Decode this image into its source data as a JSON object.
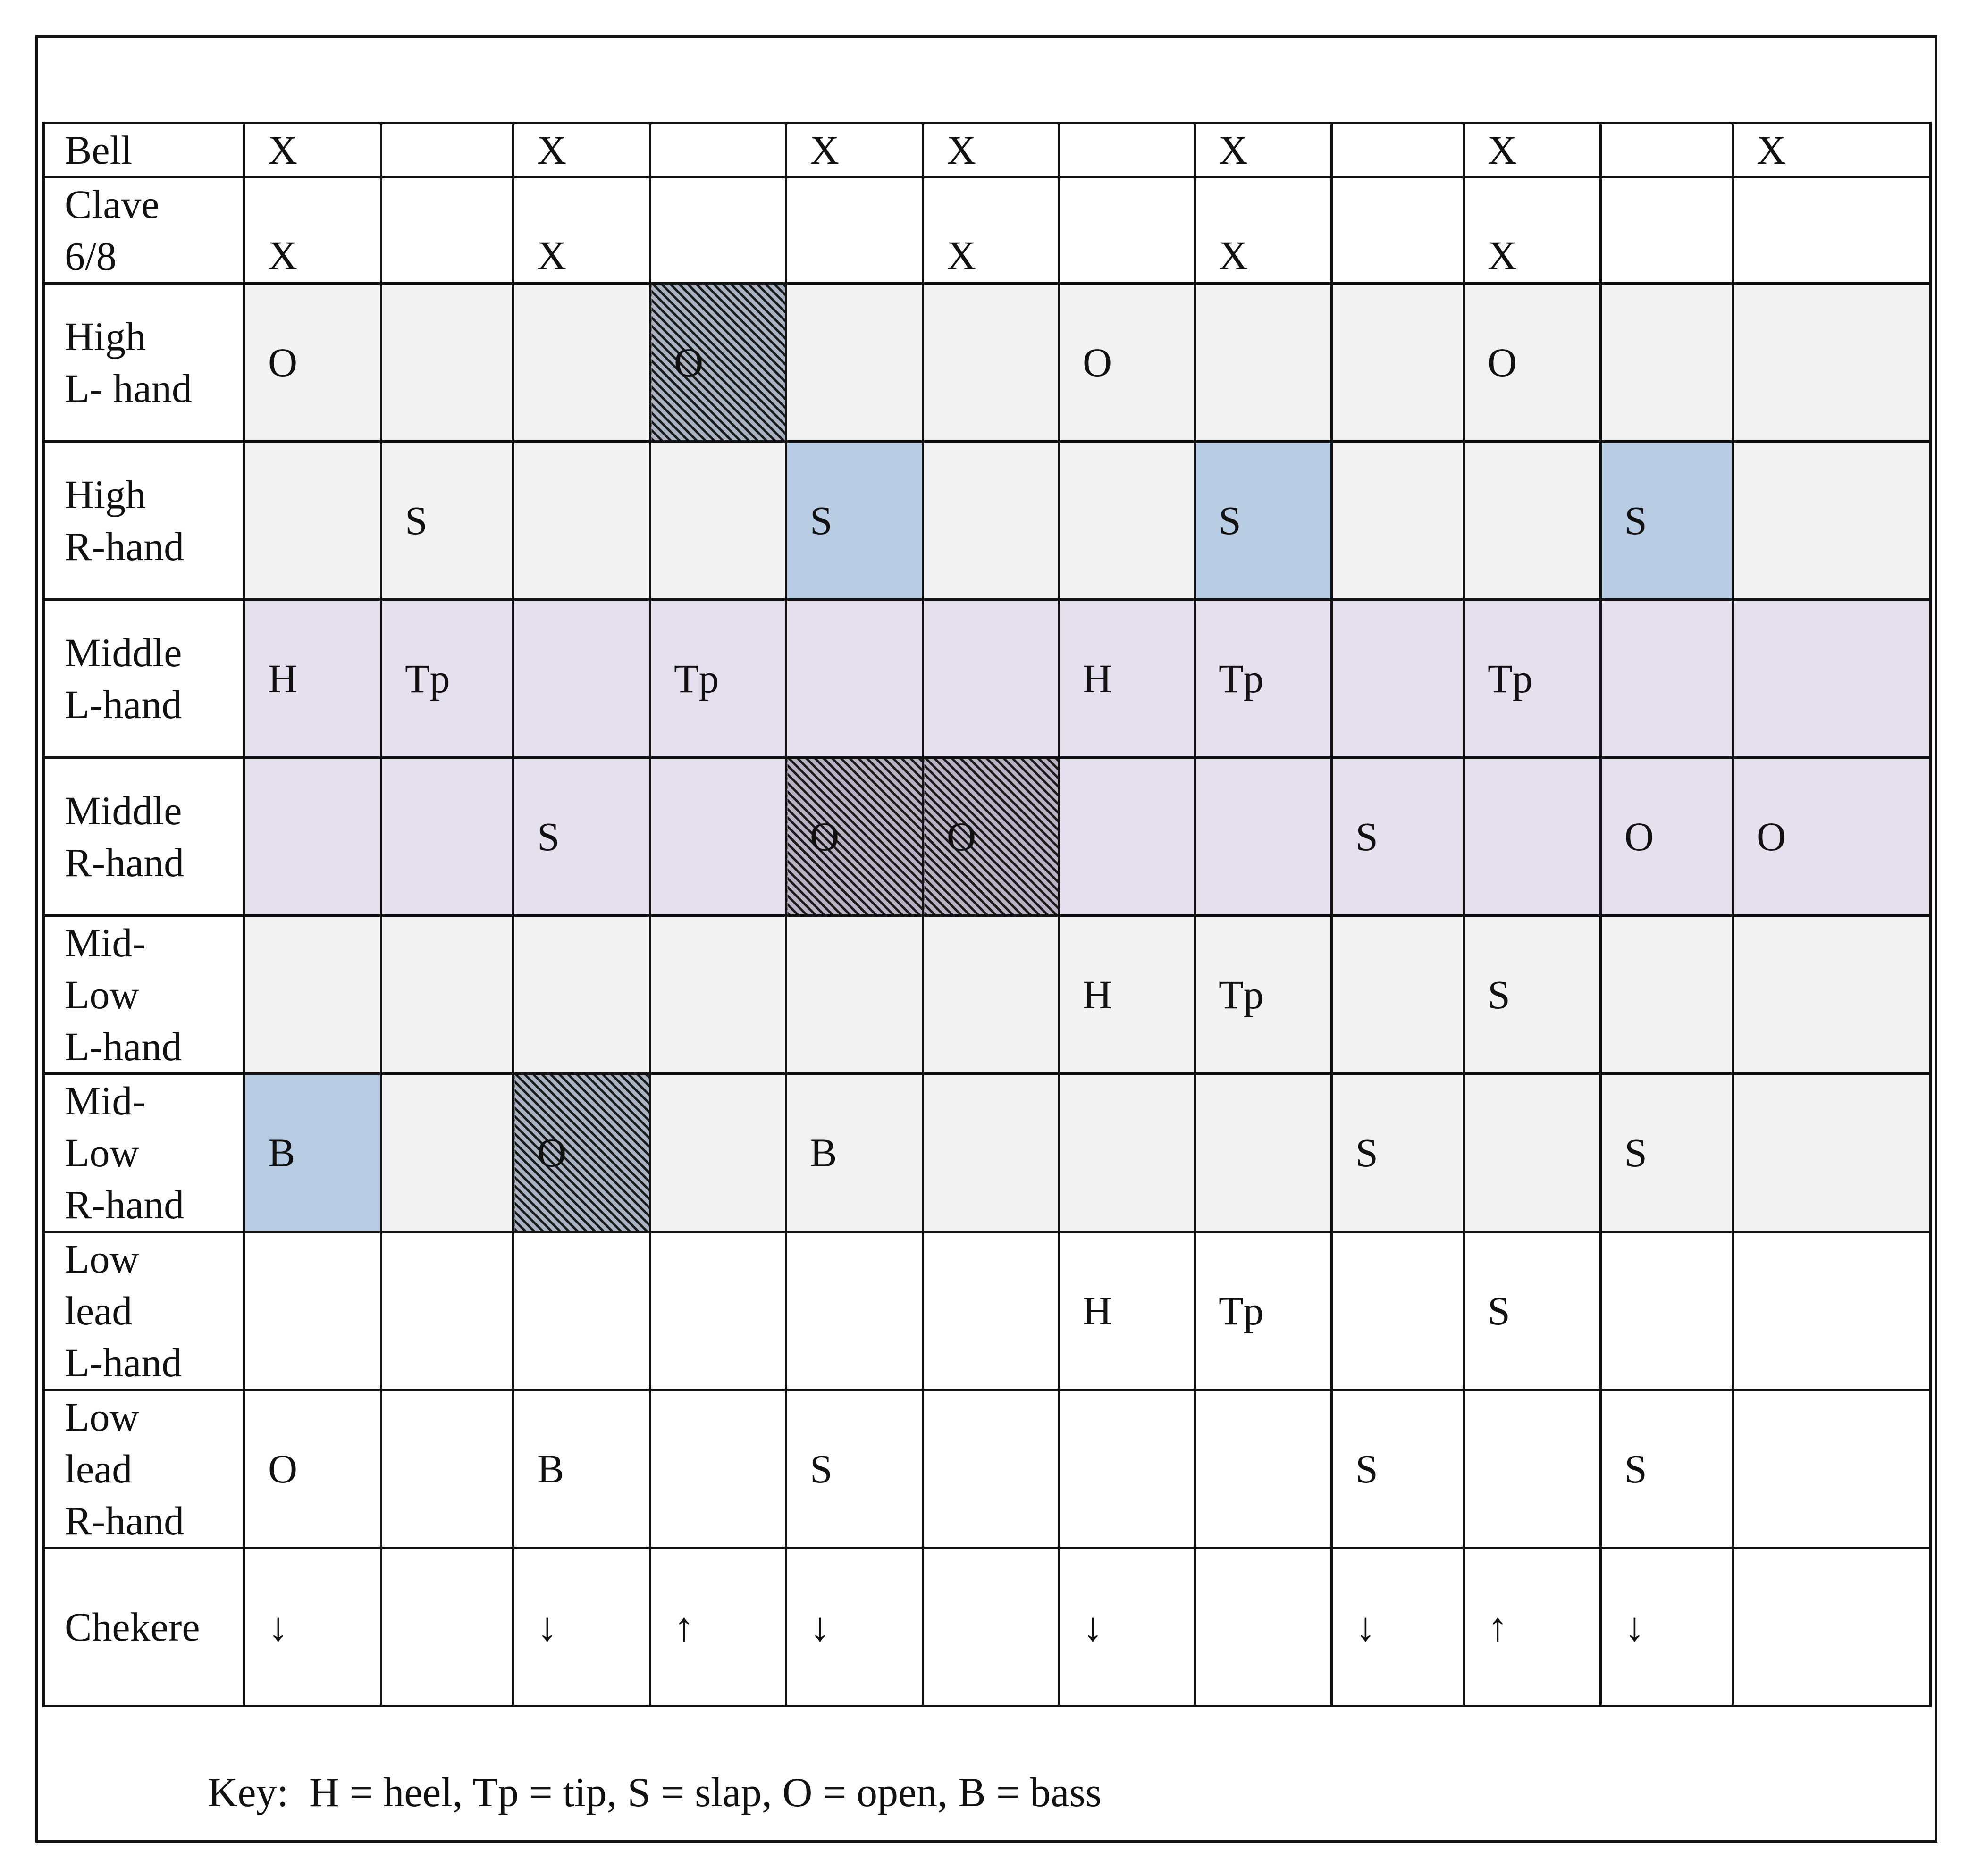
{
  "rows": [
    {
      "label": "Bell",
      "bg": "bg-white",
      "top": false,
      "cells": [
        {
          "t": "X"
        },
        {
          "t": ""
        },
        {
          "t": "X"
        },
        {
          "t": ""
        },
        {
          "t": "X"
        },
        {
          "t": "X"
        },
        {
          "t": ""
        },
        {
          "t": "X"
        },
        {
          "t": ""
        },
        {
          "t": "X"
        },
        {
          "t": ""
        },
        {
          "t": "X"
        }
      ]
    },
    {
      "label": "Clave\n6/8",
      "bg": "bg-white",
      "top": true,
      "cells": [
        {
          "t": "X"
        },
        {
          "t": ""
        },
        {
          "t": "X"
        },
        {
          "t": ""
        },
        {
          "t": ""
        },
        {
          "t": "X"
        },
        {
          "t": ""
        },
        {
          "t": "X"
        },
        {
          "t": ""
        },
        {
          "t": "X"
        },
        {
          "t": ""
        },
        {
          "t": ""
        }
      ]
    },
    {
      "label": "High\nL- hand",
      "bg": "bg-gray",
      "top": false,
      "cells": [
        {
          "t": "O"
        },
        {
          "t": ""
        },
        {
          "t": ""
        },
        {
          "t": "O",
          "s": "hatch"
        },
        {
          "t": ""
        },
        {
          "t": ""
        },
        {
          "t": "O"
        },
        {
          "t": ""
        },
        {
          "t": ""
        },
        {
          "t": "O"
        },
        {
          "t": ""
        },
        {
          "t": ""
        }
      ]
    },
    {
      "label": "High\nR-hand",
      "bg": "bg-gray",
      "top": false,
      "cells": [
        {
          "t": ""
        },
        {
          "t": "S"
        },
        {
          "t": ""
        },
        {
          "t": ""
        },
        {
          "t": "S",
          "s": "bg-blue"
        },
        {
          "t": ""
        },
        {
          "t": ""
        },
        {
          "t": "S",
          "s": "bg-blue"
        },
        {
          "t": ""
        },
        {
          "t": ""
        },
        {
          "t": "S",
          "s": "bg-blue"
        },
        {
          "t": ""
        }
      ]
    },
    {
      "label": "Middle\nL-hand",
      "bg": "bg-lav",
      "top": false,
      "cells": [
        {
          "t": "H"
        },
        {
          "t": "Tp"
        },
        {
          "t": ""
        },
        {
          "t": "Tp"
        },
        {
          "t": ""
        },
        {
          "t": ""
        },
        {
          "t": "H"
        },
        {
          "t": "Tp"
        },
        {
          "t": ""
        },
        {
          "t": "Tp"
        },
        {
          "t": ""
        },
        {
          "t": ""
        }
      ]
    },
    {
      "label": "Middle\nR-hand",
      "bg": "bg-lav",
      "top": false,
      "cells": [
        {
          "t": ""
        },
        {
          "t": ""
        },
        {
          "t": "S"
        },
        {
          "t": ""
        },
        {
          "t": "O",
          "s": "hatch2"
        },
        {
          "t": "O",
          "s": "hatch2"
        },
        {
          "t": ""
        },
        {
          "t": ""
        },
        {
          "t": "S"
        },
        {
          "t": ""
        },
        {
          "t": "O"
        },
        {
          "t": "O"
        }
      ]
    },
    {
      "label": "Mid-\nLow\nL-hand",
      "bg": "bg-gray",
      "top": false,
      "cells": [
        {
          "t": ""
        },
        {
          "t": ""
        },
        {
          "t": ""
        },
        {
          "t": ""
        },
        {
          "t": ""
        },
        {
          "t": ""
        },
        {
          "t": "H"
        },
        {
          "t": "Tp"
        },
        {
          "t": ""
        },
        {
          "t": "S"
        },
        {
          "t": ""
        },
        {
          "t": ""
        }
      ]
    },
    {
      "label": "Mid-\nLow\nR-hand",
      "bg": "bg-gray",
      "top": false,
      "cells": [
        {
          "t": "B",
          "s": "bg-blue"
        },
        {
          "t": ""
        },
        {
          "t": "O",
          "s": "hatch"
        },
        {
          "t": ""
        },
        {
          "t": "B"
        },
        {
          "t": ""
        },
        {
          "t": ""
        },
        {
          "t": ""
        },
        {
          "t": "S"
        },
        {
          "t": ""
        },
        {
          "t": "S"
        },
        {
          "t": ""
        }
      ]
    },
    {
      "label": "Low\nlead\nL-hand",
      "bg": "bg-white",
      "top": false,
      "cells": [
        {
          "t": ""
        },
        {
          "t": ""
        },
        {
          "t": ""
        },
        {
          "t": ""
        },
        {
          "t": ""
        },
        {
          "t": ""
        },
        {
          "t": "H"
        },
        {
          "t": "Tp"
        },
        {
          "t": ""
        },
        {
          "t": "S"
        },
        {
          "t": ""
        },
        {
          "t": ""
        }
      ]
    },
    {
      "label": "Low\nlead\nR-hand",
      "bg": "bg-white",
      "top": false,
      "cells": [
        {
          "t": "O"
        },
        {
          "t": ""
        },
        {
          "t": "B"
        },
        {
          "t": ""
        },
        {
          "t": "S"
        },
        {
          "t": ""
        },
        {
          "t": ""
        },
        {
          "t": ""
        },
        {
          "t": "S"
        },
        {
          "t": ""
        },
        {
          "t": "S"
        },
        {
          "t": ""
        }
      ]
    },
    {
      "label": "Chekere",
      "bg": "bg-white",
      "top": false,
      "cells": [
        {
          "t": "↓"
        },
        {
          "t": ""
        },
        {
          "t": "↓"
        },
        {
          "t": "↑"
        },
        {
          "t": "↓"
        },
        {
          "t": ""
        },
        {
          "t": "↓"
        },
        {
          "t": ""
        },
        {
          "t": "↓"
        },
        {
          "t": "↑"
        },
        {
          "t": "↓"
        },
        {
          "t": ""
        }
      ]
    }
  ],
  "key": "Key:  H = heel, Tp = tip, S = slap, O = open, B = bass"
}
